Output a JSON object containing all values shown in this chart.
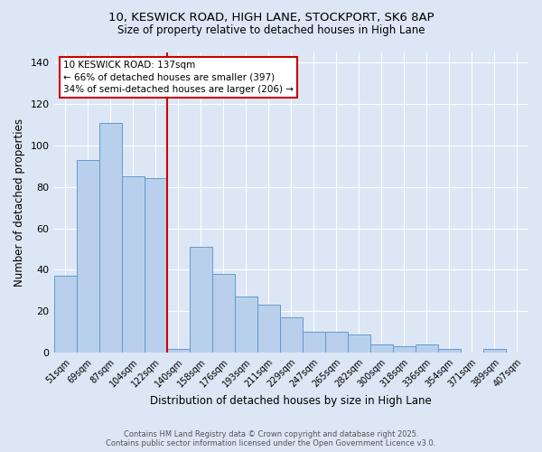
{
  "title1": "10, KESWICK ROAD, HIGH LANE, STOCKPORT, SK6 8AP",
  "title2": "Size of property relative to detached houses in High Lane",
  "xlabel": "Distribution of detached houses by size in High Lane",
  "ylabel": "Number of detached properties",
  "categories": [
    "51sqm",
    "69sqm",
    "87sqm",
    "104sqm",
    "122sqm",
    "140sqm",
    "158sqm",
    "176sqm",
    "193sqm",
    "211sqm",
    "229sqm",
    "247sqm",
    "265sqm",
    "282sqm",
    "300sqm",
    "318sqm",
    "336sqm",
    "354sqm",
    "371sqm",
    "389sqm",
    "407sqm"
  ],
  "values": [
    37,
    93,
    111,
    85,
    84,
    2,
    51,
    38,
    27,
    23,
    17,
    10,
    10,
    9,
    4,
    3,
    4,
    2,
    0,
    2,
    0
  ],
  "bar_color": "#b8d0ec",
  "bar_edge_color": "#6699cc",
  "vline_color": "#cc0000",
  "annotation_text": "10 KESWICK ROAD: 137sqm\n← 66% of detached houses are smaller (397)\n34% of semi-detached houses are larger (206) →",
  "annotation_box_color": "#cc0000",
  "ylim": [
    0,
    145
  ],
  "yticks": [
    0,
    20,
    40,
    60,
    80,
    100,
    120,
    140
  ],
  "background_color": "#dce6f5",
  "grid_color": "#ffffff",
  "footer_line1": "Contains HM Land Registry data © Crown copyright and database right 2025.",
  "footer_line2": "Contains public sector information licensed under the Open Government Licence v3.0."
}
